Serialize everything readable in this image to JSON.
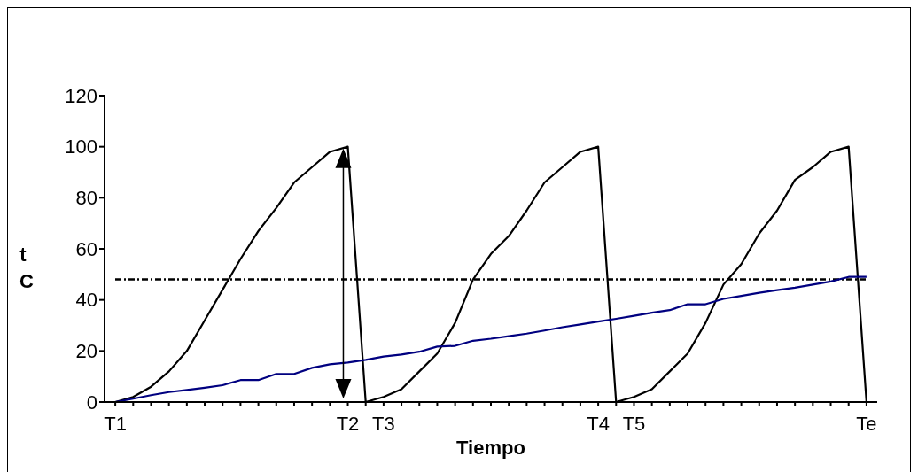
{
  "chart_data": {
    "type": "line",
    "xlabel": "Tiempo",
    "ylabel": "t C",
    "ylim": [
      0,
      120
    ],
    "yticks": [
      0,
      20,
      40,
      60,
      80,
      100,
      120
    ],
    "categories": [
      "T1",
      null,
      null,
      null,
      null,
      null,
      null,
      null,
      null,
      null,
      null,
      null,
      null,
      "T2",
      null,
      "T3",
      null,
      null,
      null,
      null,
      null,
      null,
      null,
      null,
      null,
      null,
      null,
      "T4",
      null,
      "T5",
      null,
      null,
      null,
      null,
      null,
      null,
      null,
      null,
      null,
      null,
      null,
      null,
      "Te"
    ],
    "series": [
      {
        "color": "#000000",
        "values": [
          0,
          2,
          6,
          12,
          20,
          32,
          44,
          56,
          67,
          76,
          86,
          92,
          98,
          100,
          0,
          2,
          5,
          12,
          19,
          31,
          48,
          58,
          65,
          75,
          86,
          92,
          98,
          100,
          0,
          2,
          5,
          12,
          19,
          31,
          46,
          54,
          66,
          75,
          87,
          92,
          98,
          100,
          0
        ]
      },
      {
        "color": "#000080",
        "values": [
          0,
          1.3,
          2.7,
          3.9,
          4.7,
          5.6,
          6.6,
          8.6,
          8.6,
          11,
          11,
          13.4,
          14.8,
          15.5,
          16.5,
          17.8,
          18.6,
          19.7,
          21.7,
          22,
          24,
          24.8,
          25.8,
          26.8,
          28,
          29.3,
          30.4,
          31.5,
          32.6,
          33.8,
          35,
          36,
          38.3,
          38.3,
          40.4,
          41.6,
          42.8,
          43.8,
          44.8,
          46,
          47.2,
          49,
          49
        ]
      }
    ],
    "ref_lines": [
      {
        "axis": "y",
        "value": 48,
        "color": "#000000",
        "line_style": "dashed"
      }
    ],
    "grid": false,
    "marker": "none",
    "line_style": "solid"
  }
}
